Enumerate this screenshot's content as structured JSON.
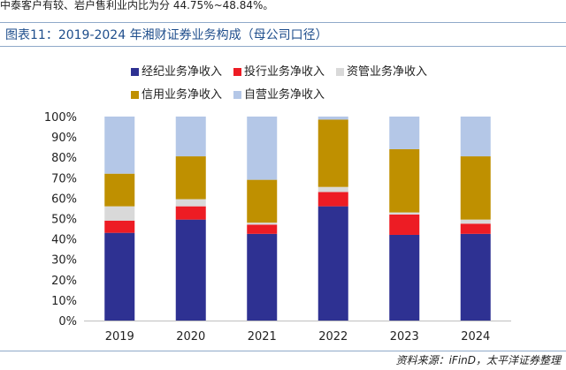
{
  "top_text": "中泰客户有较、岩户售利业内比为分 44.75%~48.84%。",
  "header": {
    "title": "图表11：2019-2024 年湘财证券业务构成（母公司口径）"
  },
  "source": "资料来源：iFinD，太平洋证券整理",
  "colors": {
    "brokerage": "#2e3192",
    "investment_banking": "#ed1c24",
    "asset_management": "#d9d9d9",
    "credit": "#bf9000",
    "proprietary": "#b4c7e7",
    "axis_text": "#222222",
    "axis_line": "#bfbfbf"
  },
  "chart_data": {
    "type": "bar",
    "stacked": true,
    "title": "",
    "xlabel": "",
    "ylabel": "",
    "ylim": [
      0,
      100
    ],
    "yticks": [
      "0%",
      "10%",
      "20%",
      "30%",
      "40%",
      "50%",
      "60%",
      "70%",
      "80%",
      "90%",
      "100%"
    ],
    "categories": [
      "2019",
      "2020",
      "2021",
      "2022",
      "2023",
      "2024"
    ],
    "series": [
      {
        "name": "经纪业务净收入",
        "key": "brokerage",
        "values": [
          43,
          49.5,
          42.5,
          56,
          42,
          42.5
        ]
      },
      {
        "name": "投行业务净收入",
        "key": "investment_banking",
        "values": [
          6,
          6.5,
          4.5,
          7,
          10,
          5
        ]
      },
      {
        "name": "资管业务净收入",
        "key": "asset_management",
        "values": [
          7,
          3.5,
          1,
          2.5,
          1,
          2
        ]
      },
      {
        "name": "信用业务净收入",
        "key": "credit",
        "values": [
          16,
          21,
          21,
          33,
          31,
          31
        ]
      },
      {
        "name": "自营业务净收入",
        "key": "proprietary",
        "values": [
          28,
          19.5,
          31,
          1.5,
          16,
          19.5
        ]
      }
    ]
  }
}
